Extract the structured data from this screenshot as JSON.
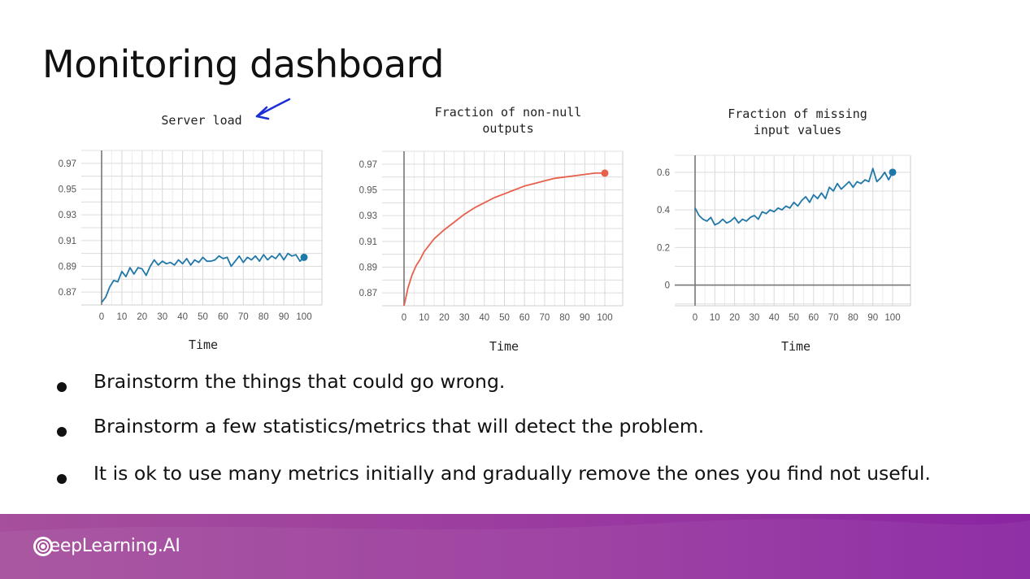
{
  "slide": {
    "title": "Monitoring dashboard",
    "bullets": [
      "Brainstorm the things that could go wrong.",
      "Brainstorm a few statistics/metrics that will detect the problem.",
      "It is ok to use many metrics initially and gradually remove the ones you find not useful."
    ],
    "logo_text": "DeepLearning.AI",
    "annotation_arrow_color": "#1a2fd6"
  },
  "colors": {
    "blue_series": "#1f78a8",
    "orange_series": "#e8604c",
    "footer_left": "#a24a9a",
    "footer_right": "#8e2aa0"
  },
  "chart_data": [
    {
      "type": "line",
      "title": "Server load",
      "xlabel": "Time",
      "ylabel": "",
      "xlim": [
        0,
        100
      ],
      "ylim": [
        0.86,
        0.98
      ],
      "xticks": [
        0,
        10,
        20,
        30,
        40,
        50,
        60,
        70,
        80,
        90,
        100
      ],
      "yticks": [
        0.87,
        0.89,
        0.91,
        0.93,
        0.95,
        0.97
      ],
      "ytick_labels": [
        "0.87",
        "0.89",
        "0.91",
        "0.93",
        "0.95",
        "0.97"
      ],
      "grid": true,
      "series": [
        {
          "color": "#1f78a8",
          "x": [
            0,
            2,
            4,
            6,
            8,
            10,
            12,
            14,
            16,
            18,
            20,
            22,
            24,
            26,
            28,
            30,
            32,
            34,
            36,
            38,
            40,
            42,
            44,
            46,
            48,
            50,
            52,
            54,
            56,
            58,
            60,
            62,
            64,
            66,
            68,
            70,
            72,
            74,
            76,
            78,
            80,
            82,
            84,
            86,
            88,
            90,
            92,
            94,
            96,
            98,
            100
          ],
          "y": [
            0.862,
            0.866,
            0.874,
            0.879,
            0.878,
            0.886,
            0.882,
            0.889,
            0.884,
            0.889,
            0.888,
            0.883,
            0.89,
            0.895,
            0.891,
            0.894,
            0.892,
            0.893,
            0.891,
            0.895,
            0.892,
            0.896,
            0.891,
            0.895,
            0.893,
            0.897,
            0.894,
            0.894,
            0.895,
            0.898,
            0.896,
            0.897,
            0.89,
            0.894,
            0.898,
            0.893,
            0.897,
            0.895,
            0.898,
            0.894,
            0.899,
            0.895,
            0.898,
            0.896,
            0.9,
            0.895,
            0.9,
            0.898,
            0.899,
            0.894,
            0.897
          ],
          "end_marker": true
        }
      ]
    },
    {
      "type": "line",
      "title": "Fraction of non-null\noutputs",
      "xlabel": "Time",
      "ylabel": "",
      "xlim": [
        0,
        100
      ],
      "ylim": [
        0.86,
        0.98
      ],
      "xticks": [
        0,
        10,
        20,
        30,
        40,
        50,
        60,
        70,
        80,
        90,
        100
      ],
      "yticks": [
        0.87,
        0.89,
        0.91,
        0.93,
        0.95,
        0.97
      ],
      "ytick_labels": [
        "0.87",
        "0.89",
        "0.91",
        "0.93",
        "0.95",
        "0.97"
      ],
      "grid": true,
      "series": [
        {
          "color": "#e8604c",
          "x": [
            0,
            1,
            2,
            4,
            6,
            8,
            10,
            15,
            20,
            25,
            30,
            35,
            40,
            45,
            50,
            55,
            60,
            65,
            70,
            75,
            80,
            85,
            90,
            95,
            100
          ],
          "y": [
            0.86,
            0.867,
            0.874,
            0.884,
            0.891,
            0.896,
            0.902,
            0.912,
            0.919,
            0.925,
            0.931,
            0.936,
            0.94,
            0.944,
            0.947,
            0.95,
            0.953,
            0.955,
            0.957,
            0.959,
            0.96,
            0.961,
            0.962,
            0.963,
            0.963
          ],
          "end_marker": true
        }
      ]
    },
    {
      "type": "line",
      "title": "Fraction of missing\ninput values",
      "xlabel": "Time",
      "ylabel": "",
      "xlim": [
        0,
        100
      ],
      "ylim": [
        -0.11,
        0.69
      ],
      "xticks": [
        0,
        10,
        20,
        30,
        40,
        50,
        60,
        70,
        80,
        90,
        100
      ],
      "yticks": [
        0,
        0.2,
        0.4,
        0.6
      ],
      "ytick_labels": [
        "0",
        "0.2",
        "0.4",
        "0.6"
      ],
      "grid": true,
      "series": [
        {
          "color": "#1f78a8",
          "x": [
            0,
            2,
            4,
            6,
            8,
            10,
            12,
            14,
            16,
            18,
            20,
            22,
            24,
            26,
            28,
            30,
            32,
            34,
            36,
            38,
            40,
            42,
            44,
            46,
            48,
            50,
            52,
            54,
            56,
            58,
            60,
            62,
            64,
            66,
            68,
            70,
            72,
            74,
            76,
            78,
            80,
            82,
            84,
            86,
            88,
            90,
            92,
            94,
            96,
            98,
            100
          ],
          "y": [
            0.41,
            0.37,
            0.35,
            0.34,
            0.36,
            0.32,
            0.33,
            0.35,
            0.33,
            0.34,
            0.36,
            0.33,
            0.35,
            0.34,
            0.36,
            0.37,
            0.35,
            0.39,
            0.38,
            0.4,
            0.39,
            0.41,
            0.4,
            0.42,
            0.41,
            0.44,
            0.42,
            0.45,
            0.47,
            0.44,
            0.48,
            0.46,
            0.49,
            0.46,
            0.52,
            0.5,
            0.54,
            0.51,
            0.53,
            0.55,
            0.52,
            0.55,
            0.54,
            0.56,
            0.55,
            0.62,
            0.55,
            0.57,
            0.6,
            0.56,
            0.6
          ],
          "end_marker": true
        }
      ]
    }
  ]
}
